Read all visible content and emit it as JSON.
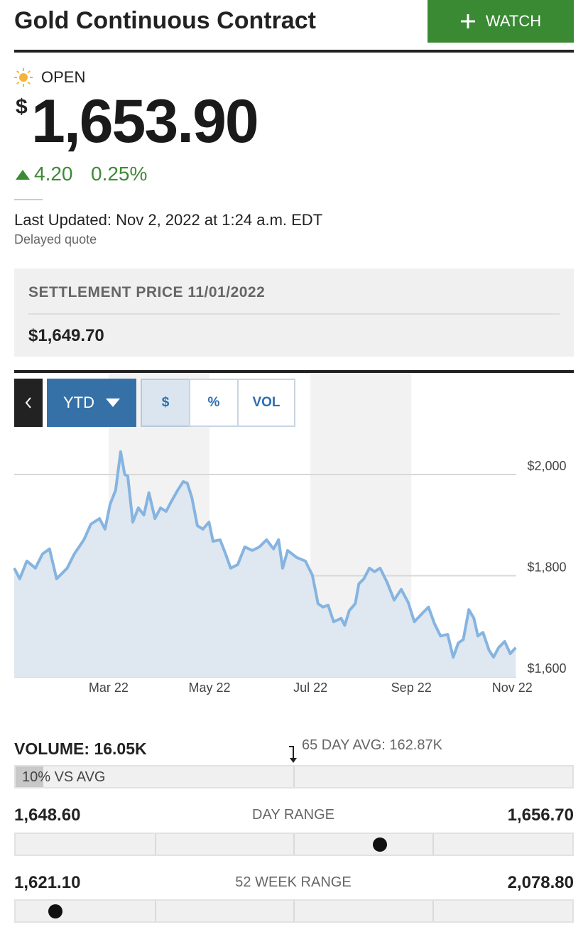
{
  "header": {
    "title": "Gold Continuous Contract",
    "watch_button": "WATCH"
  },
  "quote": {
    "status": "OPEN",
    "currency": "$",
    "price": {
      "value": 1653.9,
      "label": "1,653.90"
    },
    "change": "4.20",
    "change_pct": "0.25%",
    "last_updated": "Last Updated: Nov 2, 2022 at 1:24 a.m. EDT",
    "delayed": "Delayed quote"
  },
  "settlement": {
    "label": "SETTLEMENT PRICE 11/01/2022",
    "value": "$1,649.70"
  },
  "controls": {
    "period": "YTD",
    "buttons": [
      "$",
      "%",
      "VOL"
    ]
  },
  "chart_data": {
    "type": "line",
    "color": "#86b4e0",
    "fill_color": "#dfe7f0",
    "grid": true,
    "x": [
      0.13,
      0.24,
      0.38,
      0.55,
      0.69,
      0.83,
      0.97,
      1.18,
      1.32,
      1.51,
      1.65,
      1.82,
      1.93,
      2.03,
      2.14,
      2.24,
      2.32,
      2.38,
      2.48,
      2.59,
      2.7,
      2.8,
      2.92,
      3.03,
      3.14,
      3.25,
      3.37,
      3.48,
      3.56,
      3.65,
      3.76,
      3.87,
      3.99,
      4.07,
      4.21,
      4.32,
      4.42,
      4.56,
      4.7,
      4.85,
      4.99,
      5.13,
      5.27,
      5.37,
      5.45,
      5.55,
      5.73,
      5.9,
      6.04,
      6.15,
      6.25,
      6.35,
      6.46,
      6.61,
      6.68,
      6.77,
      6.89,
      6.96,
      7.06,
      7.17,
      7.27,
      7.38,
      7.52,
      7.66,
      7.8,
      7.94,
      8.06,
      8.23,
      8.34,
      8.46,
      8.58,
      8.72,
      8.83,
      8.93,
      9.03,
      9.14,
      9.24,
      9.32,
      9.42,
      9.54,
      9.63,
      9.73,
      9.85,
      9.96,
      10.07
    ],
    "values": [
      1815,
      1794,
      1829,
      1815,
      1843,
      1853,
      1794,
      1815,
      1843,
      1871,
      1902,
      1913,
      1892,
      1941,
      1969,
      2045,
      2000,
      1997,
      1906,
      1934,
      1920,
      1964,
      1913,
      1934,
      1927,
      1948,
      1969,
      1986,
      1983,
      1955,
      1899,
      1892,
      1906,
      1868,
      1871,
      1843,
      1815,
      1822,
      1857,
      1850,
      1857,
      1871,
      1853,
      1871,
      1815,
      1850,
      1836,
      1829,
      1801,
      1745,
      1738,
      1742,
      1709,
      1716,
      1702,
      1731,
      1745,
      1784,
      1794,
      1815,
      1808,
      1815,
      1787,
      1752,
      1773,
      1747,
      1709,
      1727,
      1738,
      1705,
      1681,
      1684,
      1639,
      1667,
      1674,
      1733,
      1716,
      1681,
      1688,
      1653,
      1639,
      1658,
      1670,
      1646,
      1658
    ],
    "xlim": [
      0.13,
      10.08
    ],
    "xticks": [
      {
        "value": 2,
        "label": "Mar 22"
      },
      {
        "value": 4,
        "label": "May 22"
      },
      {
        "value": 6,
        "label": "Jul 22"
      },
      {
        "value": 8,
        "label": "Sep 22"
      },
      {
        "value": 10,
        "label": "Nov 22"
      }
    ],
    "ylim": [
      1600,
      2200
    ],
    "yticks": [
      {
        "value": 1600,
        "label": "$1,600"
      },
      {
        "value": 1800,
        "label": "$1,800"
      },
      {
        "value": 2000,
        "label": "$2,000"
      }
    ]
  },
  "volume": {
    "label": "VOLUME: 16.05K",
    "avg": "65 DAY AVG: 162.87K",
    "vs_avg": {
      "value": 10,
      "label": "10% VS AVG"
    }
  },
  "day_range": {
    "label": "DAY RANGE",
    "low": {
      "value": 1648.6,
      "label": "1,648.60"
    },
    "high": {
      "value": 1656.7,
      "label": "1,656.70"
    }
  },
  "week52_range": {
    "label": "52 WEEK RANGE",
    "low": {
      "value": 1621.1,
      "label": "1,621.10"
    },
    "high": {
      "value": 2078.8,
      "label": "2,078.80"
    }
  }
}
